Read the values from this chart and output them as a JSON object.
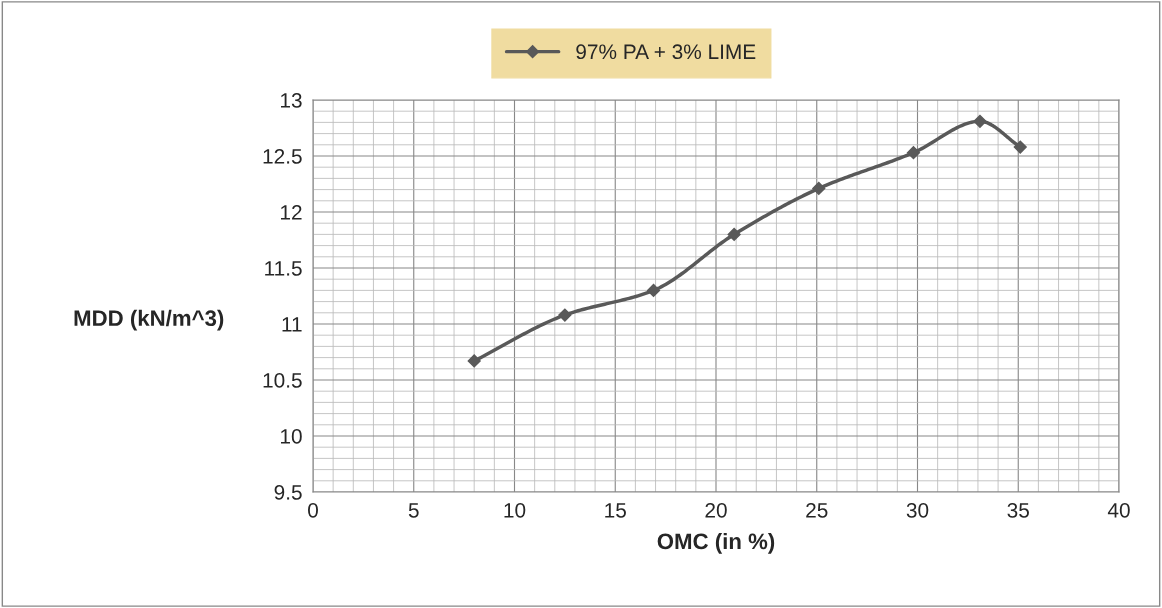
{
  "chart_data": {
    "type": "line",
    "xlabel": "OMC (in %)",
    "ylabel": "MDD (kN/m^3)",
    "x": [
      8.0,
      12.5,
      16.9,
      20.9,
      25.1,
      29.8,
      33.1,
      35.1
    ],
    "series": [
      {
        "name": "97% PA + 3% LIME",
        "color": "#595959",
        "values": [
          10.67,
          11.08,
          11.3,
          11.8,
          12.21,
          12.53,
          12.81,
          12.58
        ]
      }
    ],
    "xlim": [
      0,
      40
    ],
    "xticks": [
      0,
      5,
      10,
      15,
      20,
      25,
      30,
      35,
      40
    ],
    "ylim": [
      9.5,
      13
    ],
    "yticks": [
      9.5,
      10,
      10.5,
      11,
      11.5,
      12,
      12.5,
      13
    ],
    "grid": true,
    "legend": "top",
    "marker": "diamond",
    "line_style": "solid"
  }
}
